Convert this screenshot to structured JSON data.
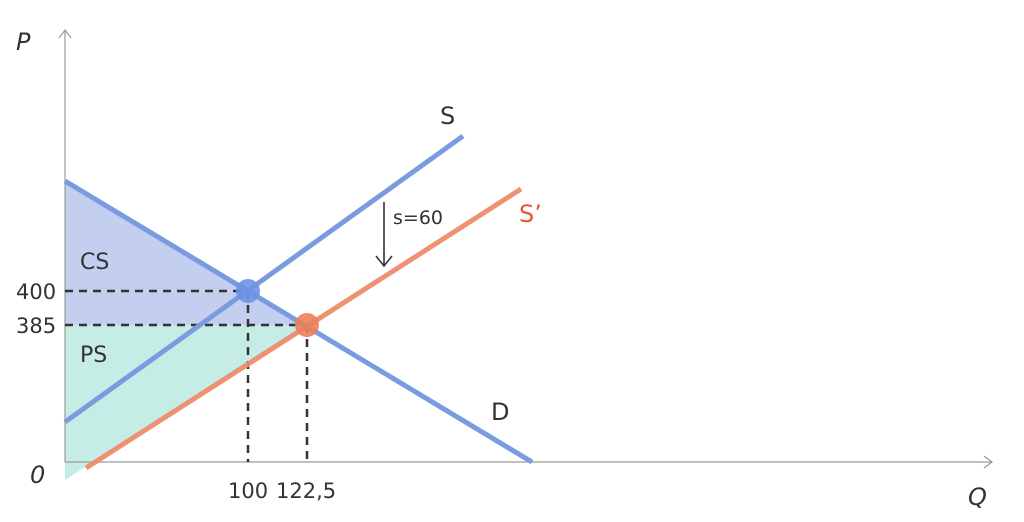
{
  "chart_data": {
    "type": "line",
    "xlabel": "Q",
    "ylabel": "P",
    "origin_label": "0",
    "x_ticks": [
      "100",
      "122,5"
    ],
    "y_ticks": [
      "400",
      "385"
    ],
    "equilibrium_original": {
      "q": 100,
      "p": 400
    },
    "equilibrium_subsidy": {
      "q": 122.5,
      "p": 385
    },
    "curves": [
      {
        "name": "S",
        "color": "#7b9be0"
      },
      {
        "name": "S’",
        "color": "#ef8c6c"
      },
      {
        "name": "D",
        "color": "#7b9be0"
      }
    ],
    "areas": [
      {
        "name": "CS",
        "color": "#c4cff0"
      },
      {
        "name": "PS",
        "color": "#c6ece6"
      }
    ],
    "annotation": "s=60",
    "colors": {
      "supply": "#7b9be0",
      "supply_shifted": "#ef8c6c",
      "demand": "#7b9be0",
      "axis": "#9a9a9a",
      "dashed": "#333333",
      "point_original": "#6e92e3",
      "point_subsidy": "#ec7e5b",
      "label_shifted": "#e4582c"
    }
  }
}
